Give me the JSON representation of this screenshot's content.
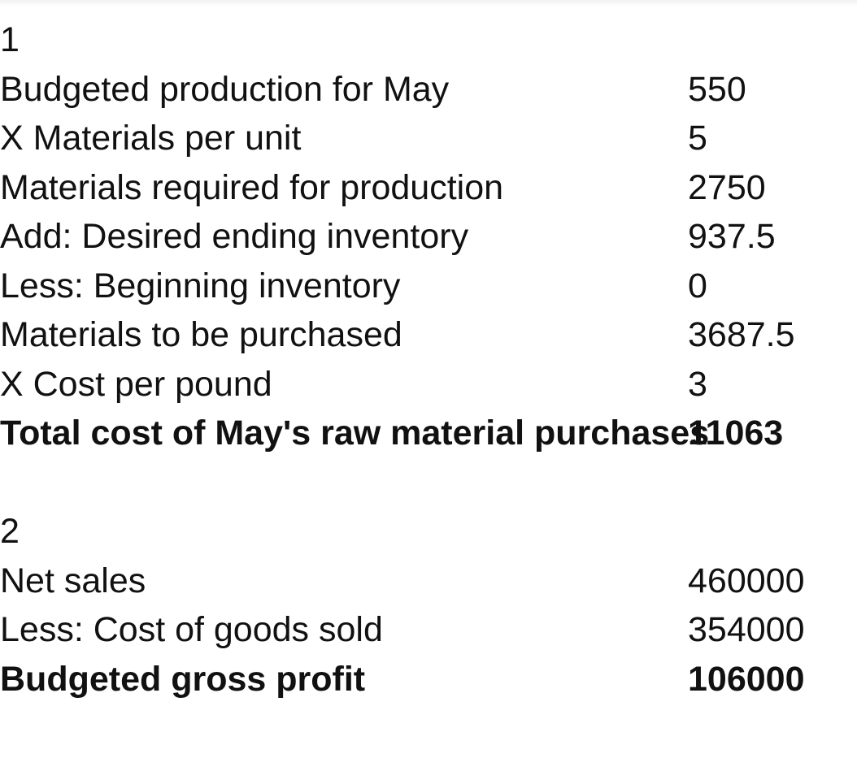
{
  "section1": {
    "number": "1",
    "rows": [
      {
        "label": "Budgeted production for May",
        "value": "550"
      },
      {
        "label": "X Materials per unit",
        "value": "5"
      },
      {
        "label": "Materials required for production",
        "value": "2750"
      },
      {
        "label": "Add: Desired ending inventory",
        "value": "937.5"
      },
      {
        "label": "Less: Beginning inventory",
        "value": "0"
      },
      {
        "label": "Materials to be purchased",
        "value": "3687.5"
      },
      {
        "label": "X Cost per pound",
        "value": "3"
      }
    ],
    "total": {
      "label": "Total cost of May's raw material purchases",
      "value": "11063"
    }
  },
  "section2": {
    "number": "2",
    "rows": [
      {
        "label": "Net sales",
        "value": "460000"
      },
      {
        "label": "Less: Cost of goods sold",
        "value": "354000"
      }
    ],
    "total": {
      "label": "Budgeted gross profit",
      "value": "106000"
    }
  }
}
